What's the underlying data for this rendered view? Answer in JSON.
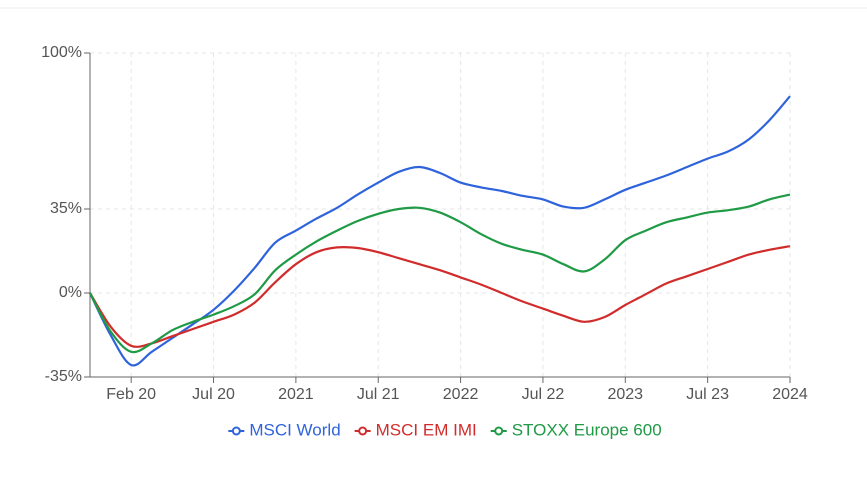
{
  "chart_data": {
    "type": "line",
    "categories": [
      null,
      null,
      "Feb 20",
      null,
      null,
      null,
      "Jul 20",
      null,
      null,
      null,
      "2021",
      null,
      null,
      null,
      "Jul 21",
      null,
      null,
      null,
      "2022",
      null,
      null,
      null,
      "Jul 22",
      null,
      null,
      null,
      "2023",
      null,
      null,
      null,
      "Jul 23",
      null,
      null,
      null,
      "2024"
    ],
    "series": [
      {
        "name": "MSCI World",
        "color": "#2f63dc",
        "values": [
          0,
          -17.5,
          -30,
          -24.5,
          -18.75,
          -13,
          -7,
          1,
          10.5,
          21,
          26,
          31,
          35.5,
          41,
          46,
          50.5,
          52.5,
          50,
          46,
          44,
          42.5,
          40.5,
          39,
          36,
          35.5,
          39,
          43,
          46,
          49,
          52.5,
          56,
          59,
          64,
          72,
          82
        ]
      },
      {
        "name": "MSCI EM IMI",
        "color": "#d12c2c",
        "values": [
          0,
          -14,
          -22,
          -21,
          -18,
          -15,
          -12,
          -9,
          -4,
          4.5,
          12,
          17,
          19,
          18.75,
          17,
          14.5,
          12,
          9.5,
          6.5,
          3.5,
          0,
          -3.5,
          -6.5,
          -9.5,
          -12,
          -10,
          -5,
          -0.5,
          4,
          7,
          10,
          13,
          16,
          18,
          19.5
        ]
      },
      {
        "name": "STOXX Europe 600",
        "color": "#1f9a45",
        "values": [
          0,
          -16,
          -24.5,
          -21,
          -15.5,
          -12,
          -9,
          -5.5,
          -0.5,
          9.5,
          16,
          21.5,
          26,
          30,
          33,
          35,
          35.5,
          33.5,
          29.5,
          24.5,
          20.5,
          18,
          16,
          12,
          9,
          14,
          22,
          26,
          29.5,
          31.5,
          33.5,
          34.5,
          36,
          39,
          41
        ]
      }
    ],
    "ylim": [
      -35,
      100
    ],
    "yticks": [
      {
        "value": -35,
        "label": "-35%"
      },
      {
        "value": 0,
        "label": "0%"
      },
      {
        "value": 35,
        "label": "35%"
      },
      {
        "value": 100,
        "label": "100%"
      }
    ],
    "grid": true,
    "legend": "bottom"
  }
}
